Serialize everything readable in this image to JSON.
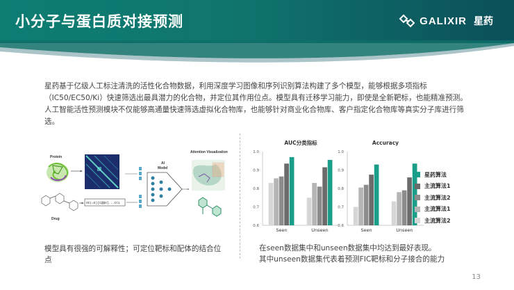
{
  "header": {
    "title": "小分子与蛋白质对接预测",
    "logo_text": "GALIXIR",
    "logo_cn": "星药"
  },
  "intro_text": "星药基于亿级人工标注清洗的活性化合物数据，利用深度学习图像和序列识别算法构建了多个模型，能够根据多项指标（IC50/EC50/Ki）快速筛选出最具潜力的化合物，并定位其作用位点。模型具有迁移学习能力，即使是全新靶标，也能精准预测。人工智能活性预测模块不仅能够高通量快速筛选虚拟化合物库，也能够针对商业化合物库、客户指定化合物库等真实分子库进行筛选。",
  "figure": {
    "protein_label": "Protein",
    "drug_label": "Drug",
    "ai_label_1": "AI",
    "ai_label_2": "Model",
    "attention_label": "Attention Visualization",
    "smiles": "OC(=O)[C@@H]...CC1"
  },
  "caption_left": "模型具有很强的可解释性；可定位靶标和配体的结合位点",
  "caption_right_1": "在seen数据集中和unseen数据集中均达到最好表现。",
  "caption_right_2": "其中unseen数据集代表着预测FIC靶标和分子接合的能力",
  "page_number": "13",
  "colors": {
    "teal": "#1a9e8a",
    "s1": "#6b6b6b",
    "s2": "#8c8c8c",
    "s3": "#b5b5b5",
    "s4": "#d6d6d6"
  },
  "chart_data": [
    {
      "type": "bar",
      "title": "AUC分类指标",
      "categories": [
        "Seen",
        "Unseen"
      ],
      "ylim": [
        0.6,
        1.0
      ],
      "yticks": [
        "0.6",
        "0.7",
        "0.8",
        "0.9",
        "1.0"
      ],
      "series": [
        {
          "name": "星药算法",
          "values": [
            0.97,
            0.955
          ]
        },
        {
          "name": "主流算法1",
          "values": [
            0.935,
            0.915
          ]
        },
        {
          "name": "主流算法2",
          "values": [
            0.865,
            0.81
          ]
        },
        {
          "name": "主流算法1",
          "values": [
            0.855,
            0.83
          ]
        },
        {
          "name": "主流算法2",
          "values": [
            0.83,
            0.75
          ]
        }
      ]
    },
    {
      "type": "bar",
      "title": "Accuracy",
      "categories": [
        "Seen",
        "Unseen"
      ],
      "ylim": [
        0.6,
        1.0
      ],
      "yticks": [
        "0.6",
        "0.7",
        "0.8",
        "0.9",
        "1.0"
      ],
      "series": [
        {
          "name": "星药算法",
          "values": [
            0.93,
            0.935
          ]
        },
        {
          "name": "主流算法1",
          "values": [
            0.875,
            0.86
          ]
        },
        {
          "name": "主流算法2",
          "values": [
            0.82,
            0.79
          ]
        },
        {
          "name": "主流算法1",
          "values": [
            0.805,
            0.78
          ]
        },
        {
          "name": "主流算法2",
          "values": [
            0.7,
            0.73
          ]
        }
      ]
    }
  ],
  "legend": [
    {
      "label": "星药算法",
      "color": "#1a9e8a"
    },
    {
      "label": "主流算法1",
      "color": "#6b6b6b"
    },
    {
      "label": "主流算法2",
      "color": "#8c8c8c"
    },
    {
      "label": "主流算法1",
      "color": "#b5b5b5"
    },
    {
      "label": "主流算法2",
      "color": "#d6d6d6"
    }
  ]
}
